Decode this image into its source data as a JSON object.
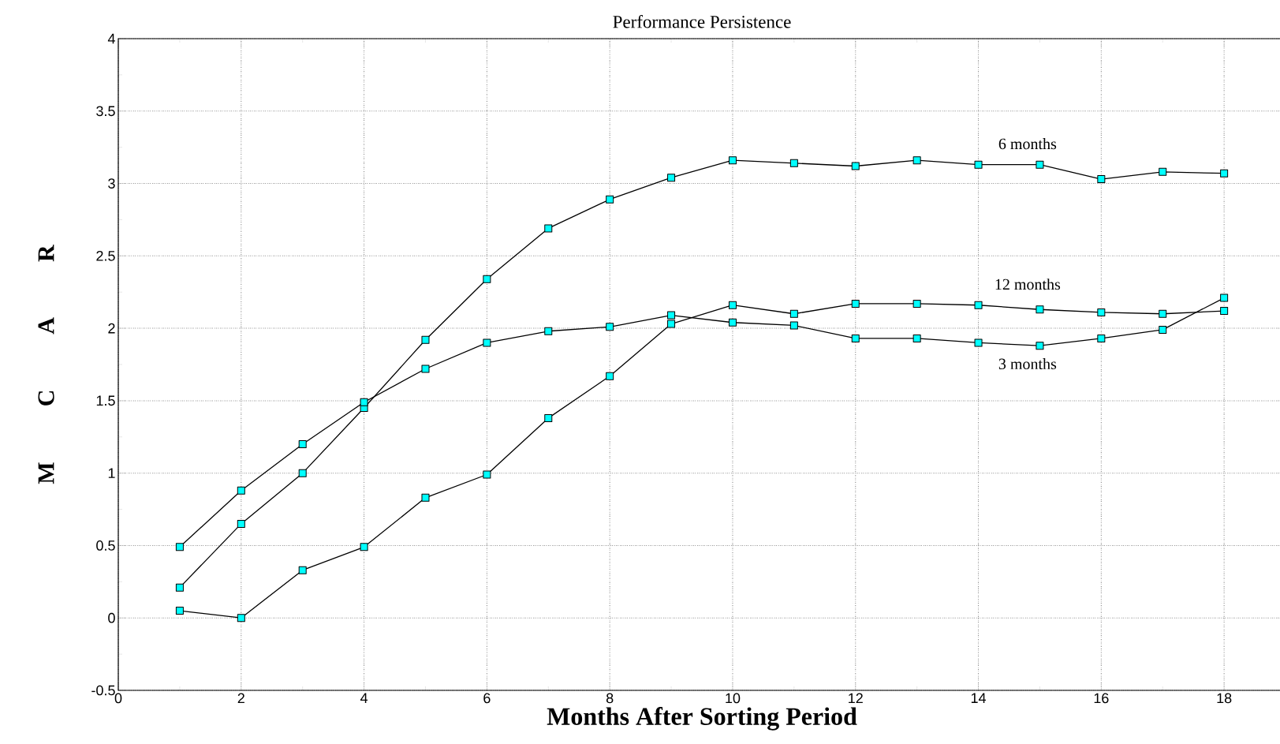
{
  "chart_data": {
    "type": "line",
    "title": "Performance Persistence",
    "xlabel": "Months After Sorting Period",
    "ylabel": "M C A R",
    "x": [
      1,
      2,
      3,
      4,
      5,
      6,
      7,
      8,
      9,
      10,
      11,
      12,
      13,
      14,
      15,
      16,
      17,
      18
    ],
    "series": [
      {
        "name": "6 months",
        "color": "#00ffff",
        "values": [
          0.21,
          0.65,
          1.0,
          1.45,
          1.92,
          2.34,
          2.69,
          2.89,
          3.04,
          3.16,
          3.14,
          3.12,
          3.16,
          3.13,
          3.13,
          3.03,
          3.08,
          3.07
        ]
      },
      {
        "name": "3 months",
        "color": "#00ffff",
        "values": [
          0.49,
          0.88,
          1.2,
          1.49,
          1.72,
          1.9,
          1.98,
          2.01,
          2.09,
          2.04,
          2.02,
          1.93,
          1.93,
          1.9,
          1.88,
          1.93,
          1.99,
          2.21
        ]
      },
      {
        "name": "12 months",
        "color": "#00ffff",
        "values": [
          0.05,
          0.0,
          0.33,
          0.49,
          0.83,
          0.99,
          1.38,
          1.67,
          2.03,
          2.16,
          2.1,
          2.17,
          2.17,
          2.16,
          2.13,
          2.11,
          2.1,
          2.12
        ]
      }
    ],
    "xlim": [
      0,
      19
    ],
    "ylim": [
      -0.5,
      4
    ],
    "xticks": [
      0,
      2,
      4,
      6,
      8,
      10,
      12,
      14,
      16,
      18
    ],
    "yticks": [
      -0.5,
      0,
      0.5,
      1,
      1.5,
      2,
      2.5,
      3,
      3.5,
      4
    ],
    "grid": true,
    "marker": "square",
    "line_style": "solid"
  }
}
